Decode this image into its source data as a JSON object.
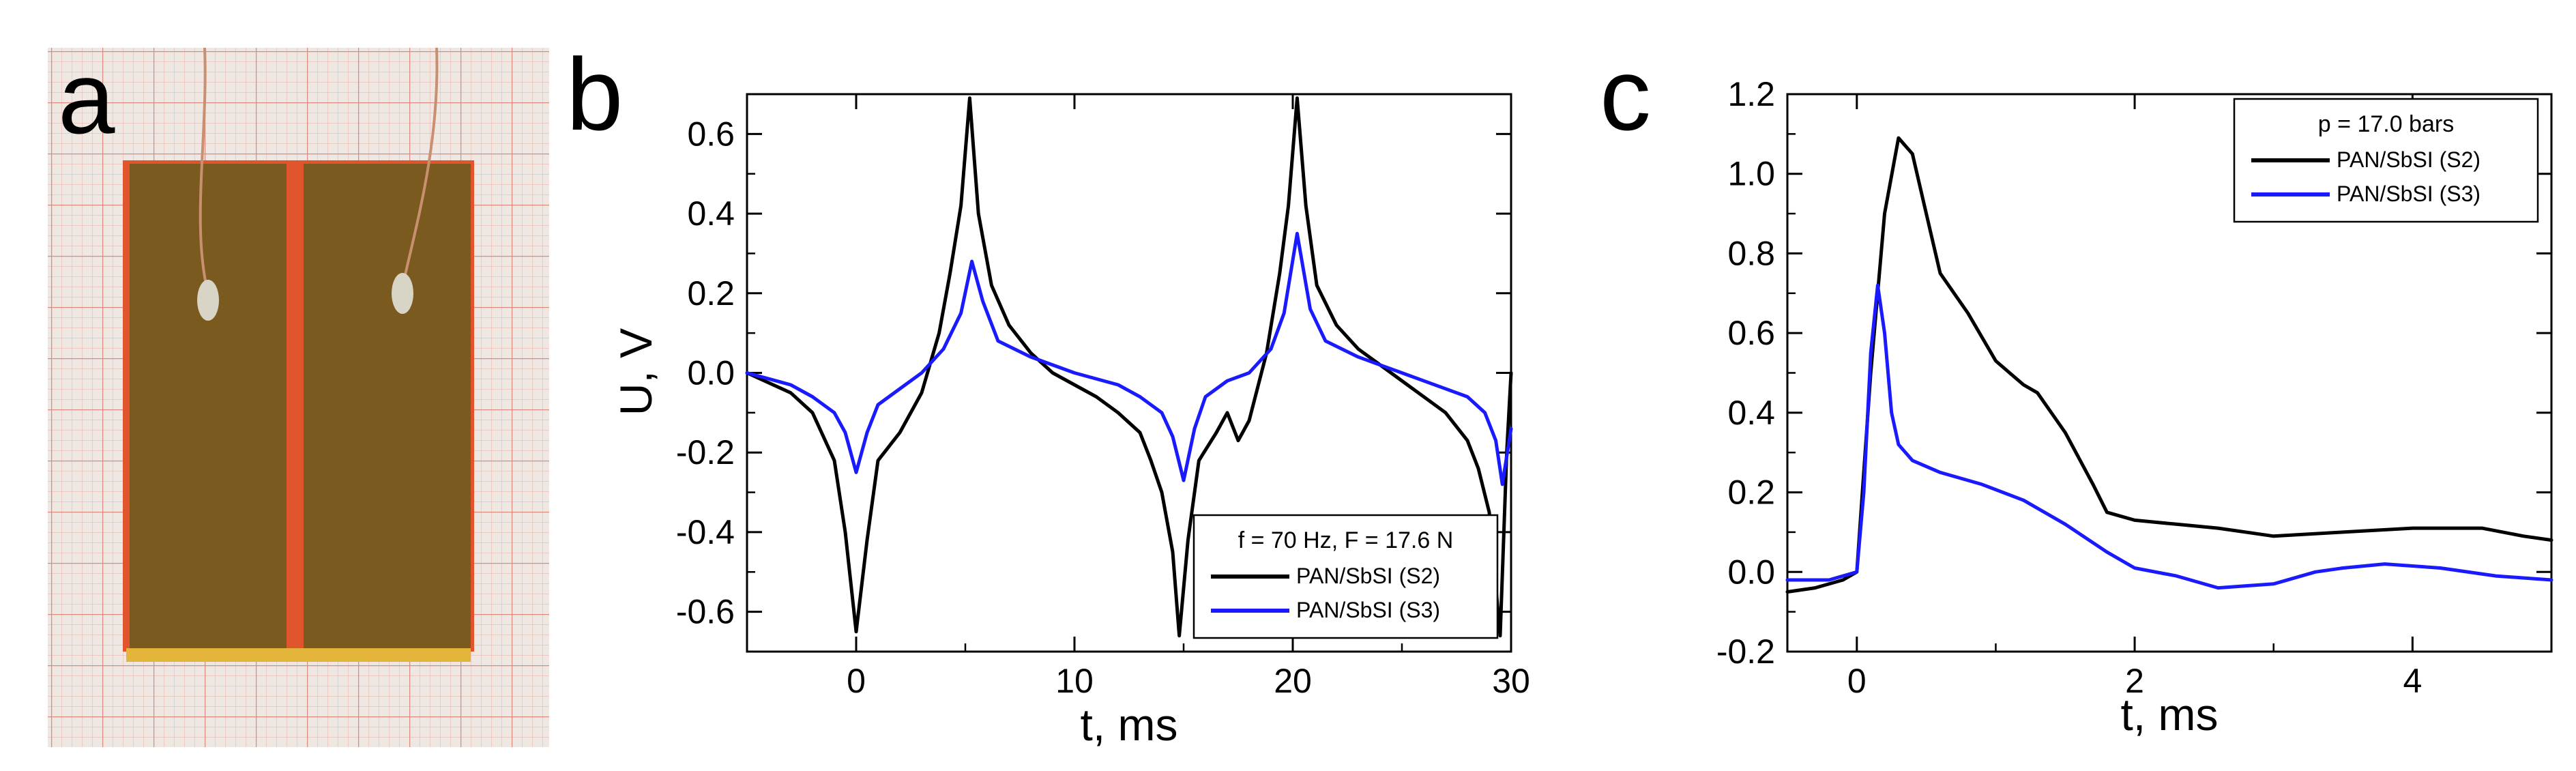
{
  "colors": {
    "s2": "#000000",
    "s3": "#1a1aff",
    "grid_paper": "#e8b8b0",
    "paper_bg": "#efe7e2",
    "electrode": "#7a5a1e",
    "tape": "#e0552c"
  },
  "panel_a": {
    "letter": "a",
    "icon": "photo-sample-icon"
  },
  "chart_data": [
    {
      "panel": "b",
      "type": "line",
      "xlabel": "t, ms",
      "ylabel": "U, V",
      "xlim": [
        -5,
        30
      ],
      "ylim": [
        -0.7,
        0.7
      ],
      "xticks": [
        0,
        10,
        20,
        30
      ],
      "xtick_labels": [
        "0",
        "10",
        "20",
        "30"
      ],
      "yticks": [
        -0.6,
        -0.4,
        -0.2,
        0.0,
        0.2,
        0.4,
        0.6
      ],
      "ytick_labels": [
        "-0.6",
        "-0.4",
        "-0.2",
        "0.0",
        "0.2",
        "0.4",
        "0.6"
      ],
      "legend": {
        "title": "f = 70 Hz, F = 17.6 N",
        "position": "bottom-right"
      },
      "series": [
        {
          "name": "PAN/SbSI (S2)",
          "color_key": "s2",
          "x": [
            -5,
            -3,
            -2,
            -1,
            -0.5,
            0,
            0.5,
            1,
            2,
            3,
            3.8,
            4.3,
            4.8,
            5.2,
            5.6,
            6.2,
            7,
            8,
            9,
            10,
            11,
            12,
            13,
            13.5,
            14,
            14.5,
            14.8,
            15.2,
            15.7,
            16.5,
            17,
            17.5,
            18,
            18.8,
            19.4,
            19.8,
            20.2,
            20.6,
            21.1,
            22,
            23,
            24,
            25,
            26,
            27,
            28,
            28.5,
            29,
            29.5,
            29.8,
            30
          ],
          "y": [
            0.0,
            -0.05,
            -0.1,
            -0.22,
            -0.4,
            -0.65,
            -0.42,
            -0.22,
            -0.15,
            -0.05,
            0.1,
            0.25,
            0.42,
            0.69,
            0.4,
            0.22,
            0.12,
            0.05,
            0.0,
            -0.03,
            -0.06,
            -0.1,
            -0.15,
            -0.22,
            -0.3,
            -0.45,
            -0.66,
            -0.42,
            -0.22,
            -0.15,
            -0.1,
            -0.17,
            -0.12,
            0.05,
            0.25,
            0.42,
            0.69,
            0.42,
            0.22,
            0.12,
            0.06,
            0.02,
            -0.02,
            -0.06,
            -0.1,
            -0.17,
            -0.24,
            -0.35,
            -0.66,
            -0.2,
            0.0
          ]
        },
        {
          "name": "PAN/SbSI (S3)",
          "color_key": "s3",
          "x": [
            -5,
            -3,
            -2,
            -1,
            -0.5,
            0,
            0.5,
            1,
            2,
            3,
            4,
            4.8,
            5.3,
            5.8,
            6.5,
            8,
            10,
            12,
            13,
            14,
            14.5,
            15,
            15.5,
            16,
            17,
            18,
            19,
            19.6,
            20.2,
            20.8,
            21.5,
            23,
            25,
            27,
            28,
            28.8,
            29.3,
            29.6,
            30
          ],
          "y": [
            0.0,
            -0.03,
            -0.06,
            -0.1,
            -0.15,
            -0.25,
            -0.15,
            -0.08,
            -0.04,
            0.0,
            0.06,
            0.15,
            0.28,
            0.18,
            0.08,
            0.04,
            0.0,
            -0.03,
            -0.06,
            -0.1,
            -0.16,
            -0.27,
            -0.14,
            -0.06,
            -0.02,
            0.0,
            0.06,
            0.15,
            0.35,
            0.16,
            0.08,
            0.04,
            0.0,
            -0.04,
            -0.06,
            -0.1,
            -0.17,
            -0.28,
            -0.14
          ]
        }
      ]
    },
    {
      "panel": "c",
      "type": "line",
      "xlabel": "t, ms",
      "ylabel": "",
      "xlim": [
        -0.5,
        5
      ],
      "ylim": [
        -0.2,
        1.2
      ],
      "xticks": [
        0,
        2,
        4
      ],
      "xtick_labels": [
        "0",
        "2",
        "4"
      ],
      "yticks": [
        -0.2,
        0.0,
        0.2,
        0.4,
        0.6,
        0.8,
        1.0,
        1.2
      ],
      "ytick_labels": [
        "-0.2",
        "0.0",
        "0.2",
        "0.4",
        "0.6",
        "0.8",
        "1.0",
        "1.2"
      ],
      "legend": {
        "title": "p = 17.0 bars",
        "position": "top-right"
      },
      "series": [
        {
          "name": "PAN/SbSI (S2)",
          "color_key": "s2",
          "x": [
            -0.5,
            -0.3,
            -0.1,
            0.0,
            0.1,
            0.2,
            0.3,
            0.4,
            0.5,
            0.6,
            0.8,
            1.0,
            1.1,
            1.2,
            1.3,
            1.5,
            1.7,
            1.8,
            2.0,
            2.3,
            2.6,
            3.0,
            3.5,
            4.0,
            4.5,
            4.8,
            5.0
          ],
          "y": [
            -0.05,
            -0.04,
            -0.02,
            0.0,
            0.5,
            0.9,
            1.09,
            1.05,
            0.9,
            0.75,
            0.65,
            0.53,
            0.5,
            0.47,
            0.45,
            0.35,
            0.22,
            0.15,
            0.13,
            0.12,
            0.11,
            0.09,
            0.1,
            0.11,
            0.11,
            0.09,
            0.08
          ]
        },
        {
          "name": "PAN/SbSI (S3)",
          "color_key": "s3",
          "x": [
            -0.5,
            -0.2,
            0.0,
            0.05,
            0.1,
            0.15,
            0.2,
            0.25,
            0.3,
            0.4,
            0.6,
            0.9,
            1.2,
            1.5,
            1.8,
            2.0,
            2.3,
            2.6,
            3.0,
            3.3,
            3.5,
            3.8,
            4.2,
            4.6,
            5.0
          ],
          "y": [
            -0.02,
            -0.02,
            0.0,
            0.2,
            0.55,
            0.72,
            0.6,
            0.4,
            0.32,
            0.28,
            0.25,
            0.22,
            0.18,
            0.12,
            0.05,
            0.01,
            -0.01,
            -0.04,
            -0.03,
            0.0,
            0.01,
            0.02,
            0.01,
            -0.01,
            -0.02
          ]
        }
      ]
    }
  ]
}
